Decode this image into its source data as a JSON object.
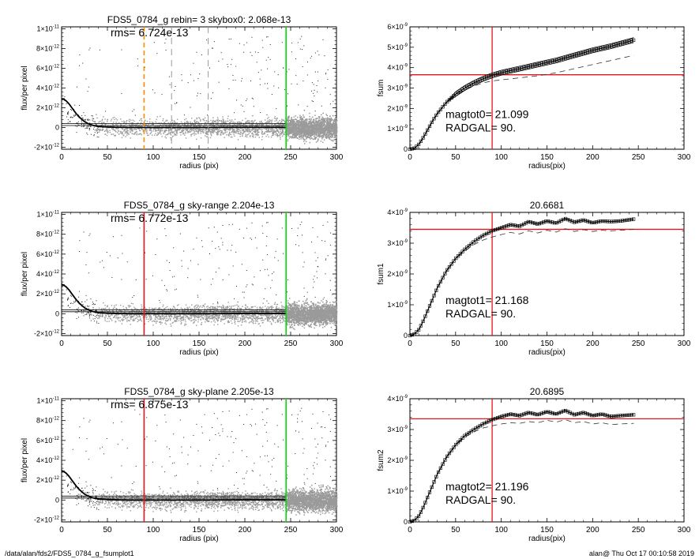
{
  "footer": {
    "left": "/data/alan/fds2/FDS5_0784_g_fsumplot1",
    "right": "alan@  Thu Oct 17 00:10:58 2019"
  },
  "colors": {
    "red": "#e8141c",
    "green": "#00dd00",
    "orange": "#ff8c00",
    "gray": "#9a9a9a",
    "dash": "#8c8c8c"
  },
  "chart_data": [
    {
      "id": "profile0",
      "type": "scatter",
      "title": "FDS5_0784_g rebin= 3    skybox0:  2.068e-13",
      "annotation": "rms= 6.724e-13",
      "xlabel": "radius (pix)",
      "ylabel": "flux/per pixel",
      "xlim": [
        0,
        300
      ],
      "ylim": [
        -2.2e-12,
        1.02e-11
      ],
      "xticks": [
        0,
        50,
        100,
        150,
        200,
        250,
        300
      ],
      "xtick_labels": [
        "0",
        "50",
        "100",
        "150",
        "200",
        "250",
        "300"
      ],
      "yticks": [
        -2e-12,
        0,
        2e-12,
        4e-12,
        6e-12,
        8e-12,
        1e-11
      ],
      "ytick_labels": [
        "-2×10-12",
        "0",
        "2×10-12",
        "4×10-12",
        "6×10-12",
        "8×10-12",
        "1×10-11"
      ],
      "hlines": [
        2e-13,
        4e-13
      ],
      "vlines": [
        {
          "x": 90,
          "color": "orange",
          "style": "dashed"
        },
        {
          "x": 120,
          "color": "gray",
          "style": "dashed"
        },
        {
          "x": 160,
          "color": "gray",
          "style": "dashed"
        },
        {
          "x": 245,
          "color": "green",
          "style": "solid"
        }
      ],
      "profile_x": [
        0,
        2,
        5,
        8,
        12,
        16,
        20,
        25,
        30,
        35,
        40,
        50,
        60,
        80,
        100,
        150,
        200,
        245
      ],
      "profile_y": [
        2.9e-12,
        2.9e-12,
        2.7e-12,
        2.4e-12,
        1.9e-12,
        1.4e-12,
        1e-12,
        6e-13,
        3.5e-13,
        2e-13,
        1e-13,
        5e-14,
        2e-14,
        0,
        0,
        0,
        2e-14,
        2e-14
      ]
    },
    {
      "id": "fsum0",
      "type": "line",
      "title": "",
      "annotation_lines": [
        "magtot0=  21.099",
        "RADGAL=     90."
      ],
      "xlabel": "radius(pix)",
      "ylabel": "fsum",
      "xlim": [
        0,
        300
      ],
      "ylim": [
        0,
        6e-09
      ],
      "xticks": [
        0,
        50,
        100,
        150,
        200,
        250,
        300
      ],
      "xtick_labels": [
        "0",
        "50",
        "100",
        "150",
        "200",
        "250",
        "300"
      ],
      "yticks": [
        0,
        1e-09,
        2e-09,
        3e-09,
        4e-09,
        5e-09,
        6e-09
      ],
      "ytick_labels": [
        "0",
        "1×10-9",
        "2×10-9",
        "3×10-9",
        "4×10-9",
        "5×10-9",
        "6×10-9"
      ],
      "hline": 3.65e-09,
      "vline": 90,
      "x": [
        0,
        5,
        10,
        15,
        20,
        25,
        30,
        40,
        50,
        60,
        70,
        80,
        90,
        100,
        120,
        140,
        160,
        180,
        200,
        220,
        245
      ],
      "y": [
        0,
        5e-11,
        2.5e-10,
        6e-10,
        1e-09,
        1.4e-09,
        1.75e-09,
        2.3e-09,
        2.7e-09,
        3e-09,
        3.25e-09,
        3.45e-09,
        3.62e-09,
        3.75e-09,
        3.95e-09,
        4.15e-09,
        4.35e-09,
        4.6e-09,
        4.85e-09,
        5.05e-09,
        5.35e-09
      ],
      "upper_offset": 1.2e-10,
      "lower_offset": -1.2e-10,
      "dashed_y": [
        0,
        5e-11,
        2.5e-10,
        6e-10,
        1e-09,
        1.4e-09,
        1.75e-09,
        2.3e-09,
        2.65e-09,
        2.9e-09,
        3.1e-09,
        3.25e-09,
        3.35e-09,
        3.4e-09,
        3.5e-09,
        3.6e-09,
        3.75e-09,
        3.95e-09,
        4.15e-09,
        4.35e-09,
        4.6e-09
      ]
    },
    {
      "id": "profile1",
      "type": "scatter",
      "title": "FDS5_0784_g sky-range  2.204e-13",
      "annotation": "rms= 6.772e-13",
      "xlabel": "radius (pix)",
      "ylabel": "flux/per pixel",
      "xlim": [
        0,
        300
      ],
      "ylim": [
        -2.2e-12,
        1.02e-11
      ],
      "xticks": [
        0,
        50,
        100,
        150,
        200,
        250,
        300
      ],
      "xtick_labels": [
        "0",
        "50",
        "100",
        "150",
        "200",
        "250",
        "300"
      ],
      "yticks": [
        -2e-12,
        0,
        2e-12,
        4e-12,
        6e-12,
        8e-12,
        1e-11
      ],
      "ytick_labels": [
        "-2×10-12",
        "0",
        "2×10-12",
        "4×10-12",
        "6×10-12",
        "8×10-12",
        "1×10-11"
      ],
      "hlines": [
        2e-13,
        4e-13
      ],
      "vlines": [
        {
          "x": 90,
          "color": "red",
          "style": "solid"
        },
        {
          "x": 245,
          "color": "green",
          "style": "solid"
        }
      ],
      "profile_x": [
        0,
        2,
        5,
        8,
        12,
        16,
        20,
        25,
        30,
        35,
        40,
        50,
        60,
        80,
        100,
        150,
        200,
        245
      ],
      "profile_y": [
        2.9e-12,
        2.9e-12,
        2.7e-12,
        2.4e-12,
        1.9e-12,
        1.4e-12,
        1e-12,
        6e-13,
        3.5e-13,
        2e-13,
        1e-13,
        5e-14,
        2e-14,
        0,
        0,
        0,
        2e-14,
        2e-14
      ]
    },
    {
      "id": "fsum1",
      "type": "line",
      "title": "20.6681",
      "annotation_lines": [
        "magtot1=  21.168",
        "RADGAL=     90."
      ],
      "xlabel": "radius(pix)",
      "ylabel": "fsum1",
      "xlim": [
        0,
        300
      ],
      "ylim": [
        0,
        4e-09
      ],
      "xticks": [
        0,
        50,
        100,
        150,
        200,
        250,
        300
      ],
      "xtick_labels": [
        "0",
        "50",
        "100",
        "150",
        "200",
        "250",
        "300"
      ],
      "yticks": [
        0,
        1e-09,
        2e-09,
        3e-09,
        4e-09
      ],
      "ytick_labels": [
        "0",
        "1×10-9",
        "2×10-9",
        "3×10-9",
        "4×10-9"
      ],
      "hline": 3.45e-09,
      "vline": 90,
      "x": [
        0,
        5,
        10,
        15,
        20,
        25,
        30,
        40,
        50,
        60,
        70,
        80,
        90,
        100,
        110,
        120,
        130,
        140,
        150,
        160,
        170,
        180,
        190,
        200,
        210,
        220,
        230,
        245
      ],
      "y": [
        0,
        5e-11,
        2e-10,
        5e-10,
        8.5e-10,
        1.2e-09,
        1.55e-09,
        2.1e-09,
        2.5e-09,
        2.8e-09,
        3.05e-09,
        3.25e-09,
        3.4e-09,
        3.5e-09,
        3.6e-09,
        3.55e-09,
        3.7e-09,
        3.62e-09,
        3.72e-09,
        3.65e-09,
        3.8e-09,
        3.68e-09,
        3.75e-09,
        3.66e-09,
        3.72e-09,
        3.7e-09,
        3.72e-09,
        3.78e-09
      ],
      "dashed_y": [
        0,
        5e-11,
        2e-10,
        5e-10,
        8.5e-10,
        1.2e-09,
        1.55e-09,
        2.1e-09,
        2.5e-09,
        2.75e-09,
        2.95e-09,
        3.1e-09,
        3.2e-09,
        3.28e-09,
        3.35e-09,
        3.3e-09,
        3.4e-09,
        3.33e-09,
        3.42e-09,
        3.36e-09,
        3.47e-09,
        3.38e-09,
        3.44e-09,
        3.38e-09,
        3.42e-09,
        3.4e-09,
        3.42e-09,
        3.45e-09
      ]
    },
    {
      "id": "profile2",
      "type": "scatter",
      "title": "FDS5_0784_g sky-plane  2.205e-13",
      "annotation": "rms= 6.875e-13",
      "xlabel": "radius (pix)",
      "ylabel": "flux/per pixel",
      "xlim": [
        0,
        300
      ],
      "ylim": [
        -2.2e-12,
        1.02e-11
      ],
      "xticks": [
        0,
        50,
        100,
        150,
        200,
        250,
        300
      ],
      "xtick_labels": [
        "0",
        "50",
        "100",
        "150",
        "200",
        "250",
        "300"
      ],
      "yticks": [
        -2e-12,
        0,
        2e-12,
        4e-12,
        6e-12,
        8e-12,
        1e-11
      ],
      "ytick_labels": [
        "-2×10-12",
        "0",
        "2×10-12",
        "4×10-12",
        "6×10-12",
        "8×10-12",
        "1×10-11"
      ],
      "hlines": [
        2e-13,
        4e-13
      ],
      "vlines": [
        {
          "x": 90,
          "color": "red",
          "style": "solid"
        },
        {
          "x": 245,
          "color": "green",
          "style": "solid"
        }
      ],
      "profile_x": [
        0,
        2,
        5,
        8,
        12,
        16,
        20,
        25,
        30,
        35,
        40,
        50,
        60,
        80,
        100,
        150,
        200,
        245
      ],
      "profile_y": [
        2.9e-12,
        2.9e-12,
        2.7e-12,
        2.4e-12,
        1.9e-12,
        1.4e-12,
        1e-12,
        6e-13,
        3.5e-13,
        2e-13,
        1e-13,
        5e-14,
        2e-14,
        0,
        0,
        0,
        2e-14,
        2e-14
      ]
    },
    {
      "id": "fsum2",
      "type": "line",
      "title": "20.6895",
      "annotation_lines": [
        "magtot2=  21.196",
        "RADGAL=     90."
      ],
      "xlabel": "radius(pix)",
      "ylabel": "fsum2",
      "xlim": [
        0,
        300
      ],
      "ylim": [
        0,
        4e-09
      ],
      "xticks": [
        0,
        50,
        100,
        150,
        200,
        250,
        300
      ],
      "xtick_labels": [
        "0",
        "50",
        "100",
        "150",
        "200",
        "250",
        "300"
      ],
      "yticks": [
        0,
        1e-09,
        2e-09,
        3e-09,
        4e-09
      ],
      "ytick_labels": [
        "0",
        "1×10-9",
        "2×10-9",
        "3×10-9",
        "4×10-9"
      ],
      "hline": 3.35e-09,
      "vline": 90,
      "x": [
        0,
        5,
        10,
        15,
        20,
        25,
        30,
        40,
        50,
        60,
        70,
        80,
        90,
        100,
        110,
        120,
        130,
        140,
        150,
        160,
        170,
        180,
        190,
        200,
        210,
        220,
        230,
        245
      ],
      "y": [
        0,
        5e-11,
        2e-10,
        5e-10,
        8.5e-10,
        1.2e-09,
        1.55e-09,
        2.1e-09,
        2.5e-09,
        2.8e-09,
        3e-09,
        3.18e-09,
        3.32e-09,
        3.42e-09,
        3.5e-09,
        3.45e-09,
        3.55e-09,
        3.48e-09,
        3.58e-09,
        3.5e-09,
        3.62e-09,
        3.48e-09,
        3.55e-09,
        3.45e-09,
        3.5e-09,
        3.42e-09,
        3.45e-09,
        3.48e-09
      ],
      "dashed_y": [
        0,
        5e-11,
        2e-10,
        5e-10,
        8.5e-10,
        1.2e-09,
        1.55e-09,
        2.1e-09,
        2.48e-09,
        2.75e-09,
        2.92e-09,
        3.05e-09,
        3.12e-09,
        3.18e-09,
        3.22e-09,
        3.2e-09,
        3.26e-09,
        3.22e-09,
        3.3e-09,
        3.24e-09,
        3.32e-09,
        3.22e-09,
        3.26e-09,
        3.18e-09,
        3.22e-09,
        3.16e-09,
        3.18e-09,
        3.2e-09
      ]
    }
  ]
}
